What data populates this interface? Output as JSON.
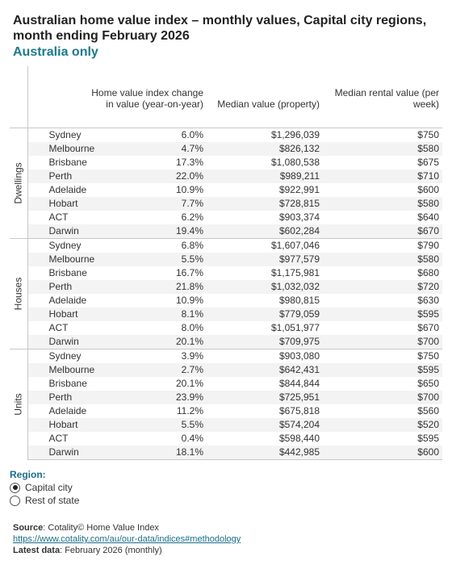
{
  "title": "Australian home value index – monthly values, Capital city regions, month ending February 2026",
  "subtitle": "Australia only",
  "colors": {
    "accent": "#1a7a8a",
    "link": "#1a6e8a"
  },
  "chart_data": {
    "type": "table",
    "columns": [
      "Home value index change in value (year-on-year)",
      "Median value (property)",
      "Median rental value (per week)"
    ],
    "groups": [
      {
        "name": "Dwellings",
        "rows": [
          {
            "city": "Sydney",
            "change": "6.0%",
            "median": "$1,296,039",
            "rent": "$750"
          },
          {
            "city": "Melbourne",
            "change": "4.7%",
            "median": "$826,132",
            "rent": "$580"
          },
          {
            "city": "Brisbane",
            "change": "17.3%",
            "median": "$1,080,538",
            "rent": "$675"
          },
          {
            "city": "Perth",
            "change": "22.0%",
            "median": "$989,211",
            "rent": "$710"
          },
          {
            "city": "Adelaide",
            "change": "10.9%",
            "median": "$922,991",
            "rent": "$600"
          },
          {
            "city": "Hobart",
            "change": "7.7%",
            "median": "$728,815",
            "rent": "$580"
          },
          {
            "city": "ACT",
            "change": "6.2%",
            "median": "$903,374",
            "rent": "$640"
          },
          {
            "city": "Darwin",
            "change": "19.4%",
            "median": "$602,284",
            "rent": "$670"
          }
        ]
      },
      {
        "name": "Houses",
        "rows": [
          {
            "city": "Sydney",
            "change": "6.8%",
            "median": "$1,607,046",
            "rent": "$790"
          },
          {
            "city": "Melbourne",
            "change": "5.5%",
            "median": "$977,579",
            "rent": "$580"
          },
          {
            "city": "Brisbane",
            "change": "16.7%",
            "median": "$1,175,981",
            "rent": "$680"
          },
          {
            "city": "Perth",
            "change": "21.8%",
            "median": "$1,032,032",
            "rent": "$720"
          },
          {
            "city": "Adelaide",
            "change": "10.9%",
            "median": "$980,815",
            "rent": "$630"
          },
          {
            "city": "Hobart",
            "change": "8.1%",
            "median": "$779,059",
            "rent": "$595"
          },
          {
            "city": "ACT",
            "change": "8.0%",
            "median": "$1,051,977",
            "rent": "$670"
          },
          {
            "city": "Darwin",
            "change": "20.1%",
            "median": "$709,975",
            "rent": "$700"
          }
        ]
      },
      {
        "name": "Units",
        "rows": [
          {
            "city": "Sydney",
            "change": "3.9%",
            "median": "$903,080",
            "rent": "$750"
          },
          {
            "city": "Melbourne",
            "change": "2.7%",
            "median": "$642,431",
            "rent": "$595"
          },
          {
            "city": "Brisbane",
            "change": "20.1%",
            "median": "$844,844",
            "rent": "$650"
          },
          {
            "city": "Perth",
            "change": "23.9%",
            "median": "$725,951",
            "rent": "$700"
          },
          {
            "city": "Adelaide",
            "change": "11.2%",
            "median": "$675,818",
            "rent": "$560"
          },
          {
            "city": "Hobart",
            "change": "5.5%",
            "median": "$574,204",
            "rent": "$520"
          },
          {
            "city": "ACT",
            "change": "0.4%",
            "median": "$598,440",
            "rent": "$595"
          },
          {
            "city": "Darwin",
            "change": "18.1%",
            "median": "$442,985",
            "rent": "$600"
          }
        ]
      }
    ]
  },
  "region": {
    "label": "Region:",
    "options": [
      {
        "label": "Capital city",
        "selected": true
      },
      {
        "label": "Rest of state",
        "selected": false
      }
    ]
  },
  "footer": {
    "source_label": "Source",
    "source_text": ": Cotality© Home Value Index",
    "link": "https://www.cotality.com/au/our-data/indices#methodology",
    "latest_label": "Latest data",
    "latest_text": ": February 2026 (monthly)"
  }
}
